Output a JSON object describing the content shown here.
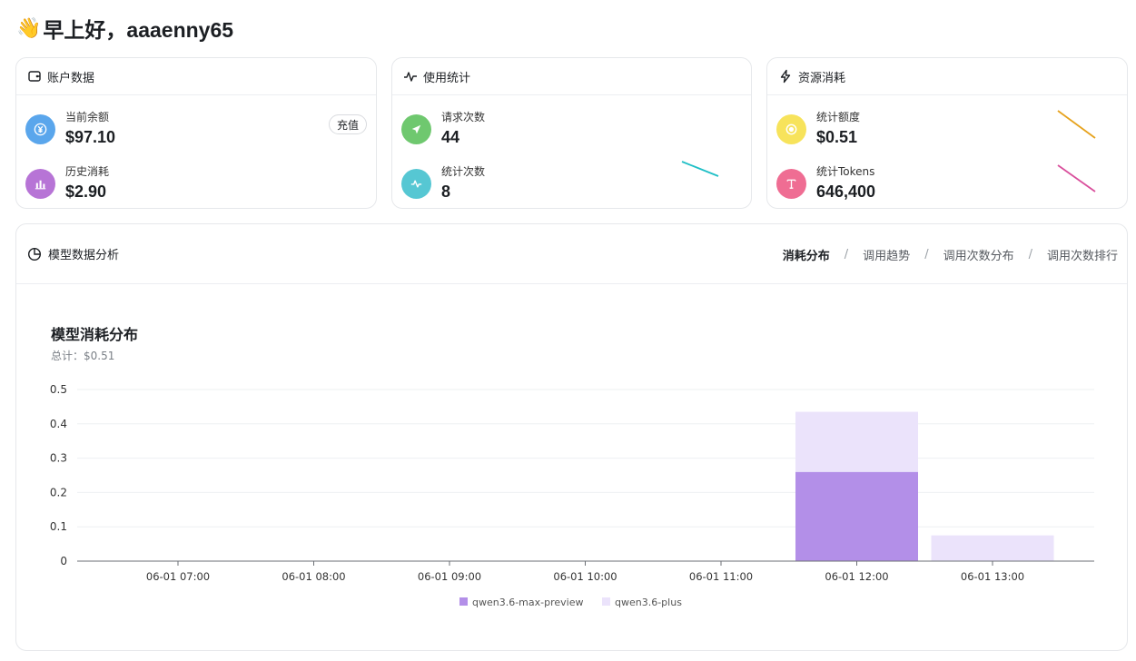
{
  "greeting": {
    "emoji": "👋",
    "text": "早上好，aaaenny65"
  },
  "cards": {
    "account": {
      "title": "账户数据",
      "balance_label": "当前余额",
      "balance_value": "$97.10",
      "recharge_label": "充值",
      "history_label": "历史消耗",
      "history_value": "$2.90"
    },
    "usage": {
      "title": "使用统计",
      "requests_label": "请求次数",
      "requests_value": "44",
      "stats_label": "统计次数",
      "stats_value": "8"
    },
    "resource": {
      "title": "资源消耗",
      "quota_label": "统计额度",
      "quota_value": "$0.51",
      "tokens_label": "统计Tokens",
      "tokens_value": "646,400"
    }
  },
  "colors": {
    "balance_icon": "#5aa6ec",
    "history_icon": "#b774d6",
    "requests_icon": "#6fc86f",
    "stats_icon": "#56c7d3",
    "quota_icon": "#f7e35b",
    "tokens_icon": "#ef6d93",
    "spark_stats": "#1fbfc6",
    "spark_quota": "#e6a21c",
    "spark_tokens": "#d94f9c",
    "series_max": "#b38fe8",
    "series_plus": "#ebe3fb"
  },
  "panel": {
    "title": "模型数据分析",
    "tabs": [
      "消耗分布",
      "调用趋势",
      "调用次数分布",
      "调用次数排行"
    ],
    "active_tab": 0,
    "chart_title": "模型消耗分布",
    "chart_total": "总计：$0.51"
  },
  "chart_data": {
    "type": "bar",
    "stacked": true,
    "categories": [
      "06-01 07:00",
      "06-01 08:00",
      "06-01 09:00",
      "06-01 10:00",
      "06-01 11:00",
      "06-01 12:00",
      "06-01 13:00"
    ],
    "series": [
      {
        "name": "qwen3.6-max-preview",
        "values": [
          0,
          0,
          0,
          0,
          0,
          0.26,
          0
        ]
      },
      {
        "name": "qwen3.6-plus",
        "values": [
          0,
          0,
          0,
          0,
          0,
          0.175,
          0.075
        ]
      }
    ],
    "y_ticks": [
      0,
      0.1,
      0.2,
      0.3,
      0.4,
      0.5
    ],
    "y_tick_labels": [
      "0",
      "0.1",
      "0.2",
      "0.3",
      "0.4",
      "0.5"
    ],
    "ylim": [
      0,
      0.5
    ],
    "grid": true,
    "legend_position": "bottom"
  }
}
